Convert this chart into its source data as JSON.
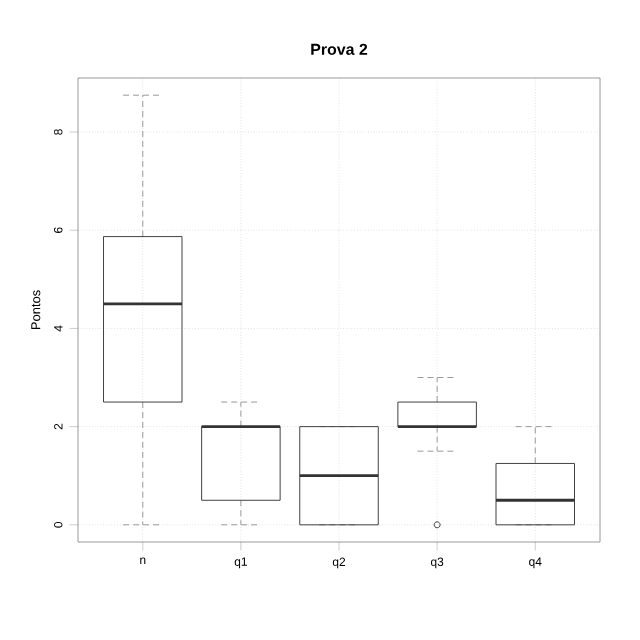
{
  "chart_data": {
    "type": "box",
    "title": "Prova 2",
    "ylabel": "Pontos",
    "categories": [
      "n",
      "q1",
      "q2",
      "q3",
      "q4"
    ],
    "boxes": [
      {
        "low": 0,
        "q1": 2.5,
        "median": 4.5,
        "q3": 5.87,
        "high": 8.75
      },
      {
        "low": 0,
        "q1": 0.5,
        "median": 2,
        "q3": 2,
        "high": 2.5
      },
      {
        "low": 0,
        "q1": 0,
        "median": 1,
        "q3": 2,
        "high": 2
      },
      {
        "low": 1.5,
        "q1": 2,
        "median": 2,
        "q3": 2.5,
        "high": 3,
        "outliers": [
          0
        ]
      },
      {
        "low": 0,
        "q1": 0,
        "median": 0.5,
        "q3": 1.25,
        "high": 2
      }
    ],
    "ylim": [
      -0.35,
      9.1
    ],
    "yticks": [
      0,
      2,
      4,
      6,
      8
    ],
    "grid": true
  }
}
